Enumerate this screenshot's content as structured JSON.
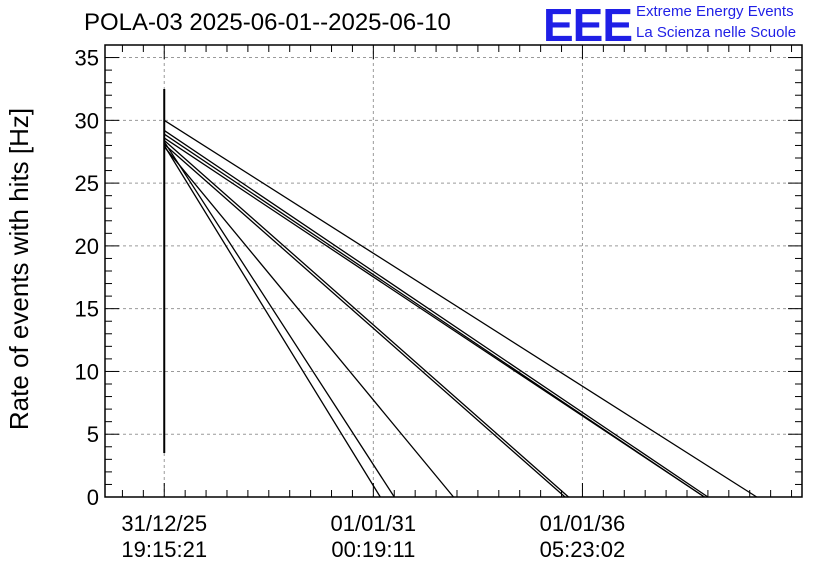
{
  "title": "POLA-03 2025-06-01--2025-06-10",
  "logo": {
    "mark": "EEE",
    "line1": "Extreme Energy Events",
    "line2": "La Scienza nelle Scuole",
    "color": "#1f1fe6"
  },
  "chart_data": {
    "type": "line",
    "title": "POLA-03 2025-06-01--2025-06-10",
    "xlabel": "",
    "ylabel": "Rate of events with hits [Hz]",
    "ylim": [
      0,
      36
    ],
    "yticks": [
      0,
      5,
      10,
      15,
      20,
      25,
      30,
      35
    ],
    "xlim_years": [
      2025.3,
      2045.3
    ],
    "xticks": [
      {
        "at_year": 2027.0,
        "date": "31/12/25",
        "time": "19:15:21"
      },
      {
        "at_year": 2033.0,
        "date": "01/01/31",
        "time": "00:19:11"
      },
      {
        "at_year": 2039.0,
        "date": "01/01/36",
        "time": "05:23:02"
      }
    ],
    "grid": true,
    "line_color": "#000000",
    "spike": {
      "x_year": 2027.0,
      "y_low": 3.5,
      "y_high": 32.5
    },
    "series": [
      {
        "values": [
          [
            2027.0,
            30.0
          ],
          [
            2044.0,
            0
          ]
        ]
      },
      {
        "values": [
          [
            2027.0,
            29.2
          ],
          [
            2042.6,
            0
          ]
        ]
      },
      {
        "values": [
          [
            2027.0,
            28.9
          ],
          [
            2042.5,
            0
          ]
        ]
      },
      {
        "values": [
          [
            2027.0,
            28.6
          ],
          [
            2042.5,
            0
          ]
        ]
      },
      {
        "values": [
          [
            2027.0,
            28.4
          ],
          [
            2038.6,
            0
          ]
        ]
      },
      {
        "values": [
          [
            2027.0,
            28.1
          ],
          [
            2038.5,
            0
          ]
        ]
      },
      {
        "values": [
          [
            2027.0,
            27.9
          ],
          [
            2035.3,
            0
          ]
        ]
      },
      {
        "values": [
          [
            2027.0,
            28.3
          ],
          [
            2033.6,
            0
          ]
        ]
      },
      {
        "values": [
          [
            2027.0,
            28.0
          ],
          [
            2033.2,
            0
          ]
        ]
      }
    ]
  }
}
